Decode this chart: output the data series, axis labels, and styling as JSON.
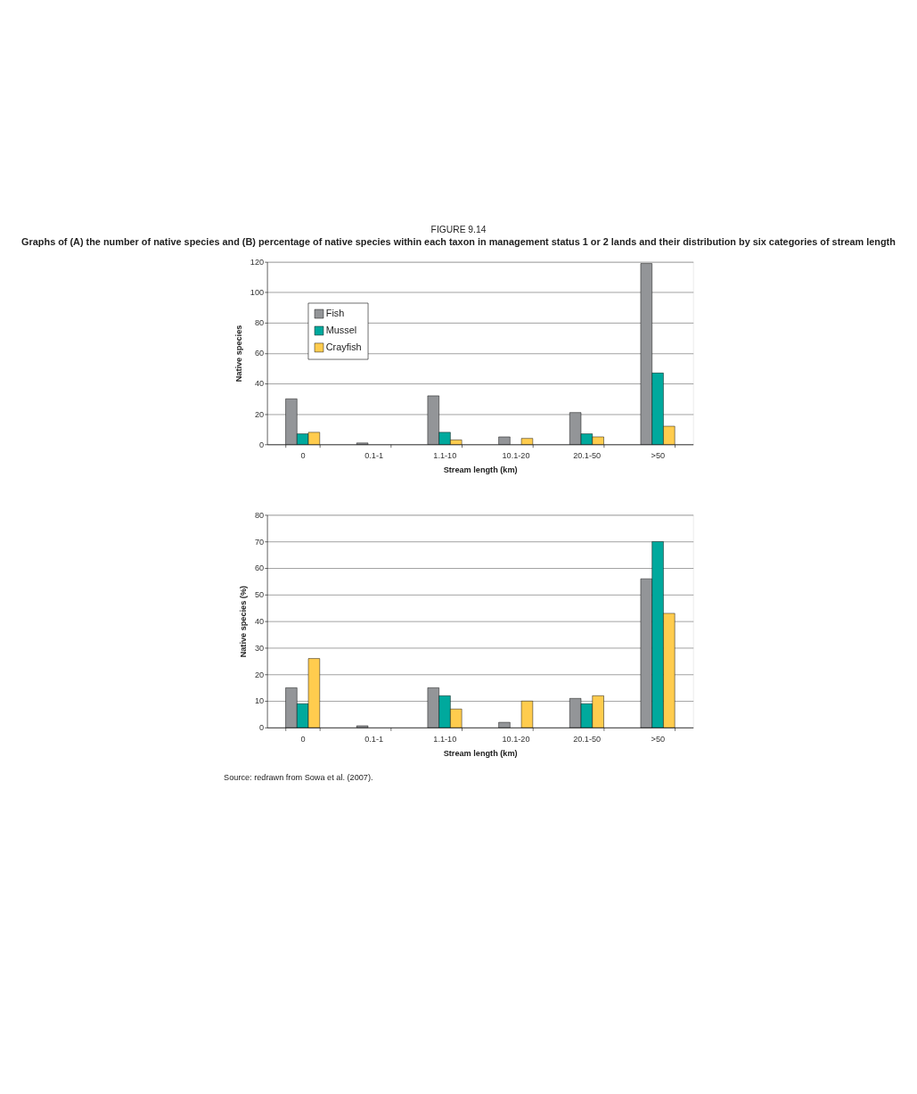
{
  "chart_data": [
    {
      "type": "bar",
      "title": "FIGURE 9.14",
      "subtitle": "Graphs of (A) the number of native species and (B) percentage of native species within each taxon in management status 1 or 2 lands and their distribution by six categories of stream length",
      "xlabel": "Stream length (km)",
      "ylabel": "Native species",
      "categories": [
        "0",
        "0.1-1",
        "1.1-10",
        "10.1-20",
        "20.1-50",
        ">50"
      ],
      "ylim": [
        0,
        120
      ],
      "yticks": [
        0,
        20,
        40,
        60,
        80,
        100,
        120
      ],
      "grid": "y",
      "legend": "top left",
      "series": [
        {
          "name": "Fish",
          "color": "#939598",
          "values": [
            30,
            1,
            32,
            5,
            21,
            119
          ]
        },
        {
          "name": "Mussel",
          "color": "#00a99d",
          "values": [
            7,
            null,
            8,
            null,
            7,
            47
          ]
        },
        {
          "name": "Crayfish",
          "color": "#ffcc4e",
          "values": [
            8,
            null,
            3,
            4,
            5,
            12
          ]
        }
      ]
    },
    {
      "type": "bar",
      "xlabel": "Stream length (km)",
      "ylabel": "Native species (%)",
      "categories": [
        "0",
        "0.1-1",
        "1.1-10",
        "10.1-20",
        "20.1-50",
        ">50"
      ],
      "ylim": [
        0,
        80
      ],
      "yticks": [
        0,
        10,
        20,
        30,
        40,
        50,
        60,
        70,
        80
      ],
      "grid": "y",
      "legend": "top left",
      "series": [
        {
          "name": "Fish",
          "color": "#939598",
          "values": [
            15,
            0.7,
            15,
            2,
            11,
            56
          ]
        },
        {
          "name": "Mussel",
          "color": "#00a99d",
          "values": [
            9,
            null,
            12,
            null,
            9,
            70
          ]
        },
        {
          "name": "Crayfish",
          "color": "#ffcc4e",
          "values": [
            26,
            null,
            7,
            10,
            12,
            43
          ]
        }
      ],
      "annotations": [
        "Source: redrawn from Sowa et al. (2007)."
      ]
    }
  ]
}
